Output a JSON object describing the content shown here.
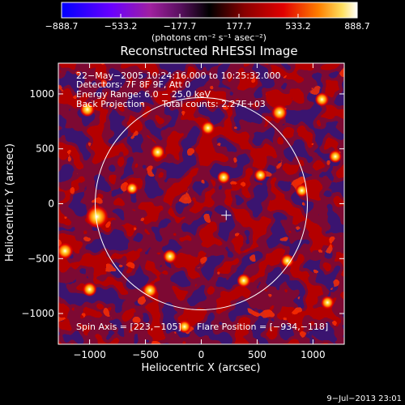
{
  "chart_data": {
    "type": "heatmap",
    "title": "Reconstructed RHESSI Image",
    "xlabel": "Heliocentric X (arcsec)",
    "ylabel": "Heliocentric Y (arcsec)",
    "xlim": [
      -1280,
      1280
    ],
    "ylim": [
      -1280,
      1280
    ],
    "xticks": [
      -1000,
      -500,
      0,
      500,
      1000
    ],
    "yticks": [
      1000,
      500,
      0,
      -500,
      -1000
    ],
    "xtick_labels": [
      "−1000",
      "−500",
      "0",
      "500",
      "1000"
    ],
    "ytick_labels": [
      "1000",
      "500",
      "0",
      "−500",
      "−1000"
    ],
    "colorbar": {
      "min": -888.7,
      "max": 888.7,
      "ticks": [
        -888.7,
        -533.2,
        -177.7,
        177.7,
        533.2,
        888.7
      ],
      "tick_labels": [
        "−888.7",
        "−533.2",
        "−177.7",
        "177.7",
        "533.2",
        "888.7"
      ],
      "units_text": "(photons cm⁻² s⁻¹ asec⁻²)"
    },
    "annotations": {
      "time_range": "22−May−2005 10:24:16.000 to 10:25:32.000",
      "detectors": "Detectors: 7F 8F 9F, Att 0",
      "energy_range": "Energy Range: 6.0 − 25.0 keV",
      "method": "Back Projection",
      "total_counts": "Total counts: 2.27E+03",
      "spin_axis": "Spin Axis = [223,−105]",
      "flare_position": "Flare Position = [−934,−118]"
    },
    "solar_limb": {
      "center": [
        0,
        0
      ],
      "radius_arcsec": 950
    },
    "spin_axis_marker": [
      223,
      -105
    ],
    "bright_sources": [
      {
        "x": -934,
        "y": -118,
        "value": 888.7
      },
      {
        "x": -1220,
        "y": -430,
        "value": 500
      },
      {
        "x": -1020,
        "y": 860,
        "value": 420
      },
      {
        "x": -390,
        "y": 470,
        "value": 380
      },
      {
        "x": 60,
        "y": 690,
        "value": 340
      },
      {
        "x": 700,
        "y": 830,
        "value": 450
      },
      {
        "x": 1080,
        "y": 950,
        "value": 360
      },
      {
        "x": -1000,
        "y": -780,
        "value": 380
      },
      {
        "x": -460,
        "y": -790,
        "value": 420
      },
      {
        "x": -280,
        "y": -480,
        "value": 360
      },
      {
        "x": 380,
        "y": -700,
        "value": 340
      },
      {
        "x": 770,
        "y": -520,
        "value": 320
      },
      {
        "x": 1130,
        "y": -900,
        "value": 320
      },
      {
        "x": 200,
        "y": 240,
        "value": 300
      },
      {
        "x": 530,
        "y": 260,
        "value": 280
      },
      {
        "x": 900,
        "y": 120,
        "value": 300
      },
      {
        "x": -620,
        "y": 140,
        "value": 260
      },
      {
        "x": -150,
        "y": -1120,
        "value": 300
      },
      {
        "x": 1200,
        "y": 430,
        "value": 300
      }
    ],
    "grid": false
  },
  "footer": {
    "timestamp": "9−Jul−2013 23:01"
  }
}
